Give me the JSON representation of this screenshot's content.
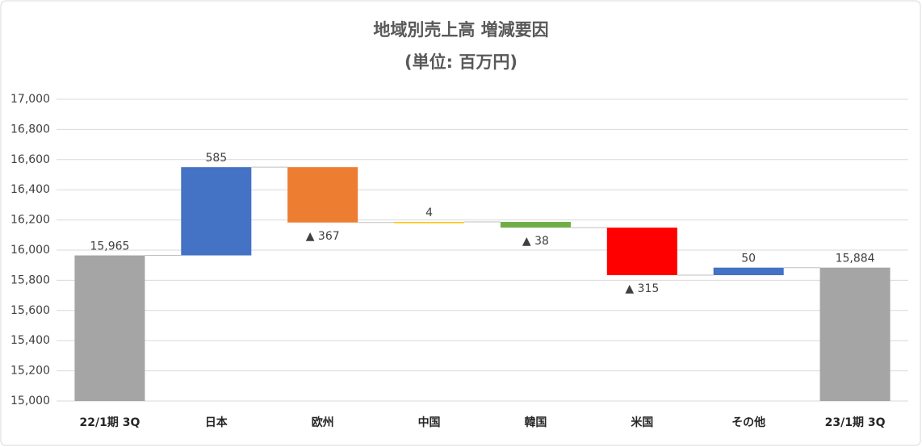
{
  "chart_data": {
    "type": "waterfall",
    "title": "地域別売上高 増減要因",
    "subtitle": "(単位: 百万円)",
    "categories": [
      "22/1期 3Q",
      "日本",
      "欧州",
      "中国",
      "韓国",
      "米国",
      "その他",
      "23/1期 3Q"
    ],
    "measure": [
      "absolute",
      "relative",
      "relative",
      "relative",
      "relative",
      "relative",
      "relative",
      "absolute"
    ],
    "values": [
      15965,
      585,
      -367,
      4,
      -38,
      -315,
      50,
      15884
    ],
    "value_labels": [
      "15,965",
      "585",
      "▲ 367",
      "4",
      "▲ 38",
      "▲ 315",
      "50",
      "15,884"
    ],
    "colors": [
      "#a5a5a5",
      "#4472c4",
      "#ed7d31",
      "#ffc000",
      "#70ad47",
      "#ff0000",
      "#4472c4",
      "#a5a5a5"
    ],
    "ylim": [
      15000,
      17000
    ],
    "yticks": [
      {
        "value": 15000,
        "label": "15,000"
      },
      {
        "value": 15200,
        "label": "15,200"
      },
      {
        "value": 15400,
        "label": "15,400"
      },
      {
        "value": 15600,
        "label": "15,600"
      },
      {
        "value": 15800,
        "label": "15,800"
      },
      {
        "value": 16000,
        "label": "16,000"
      },
      {
        "value": 16200,
        "label": "16,200"
      },
      {
        "value": 16400,
        "label": "16,400"
      },
      {
        "value": 16600,
        "label": "16,600"
      },
      {
        "value": 16800,
        "label": "16,800"
      },
      {
        "value": 17000,
        "label": "17,000"
      }
    ],
    "grid": true
  }
}
